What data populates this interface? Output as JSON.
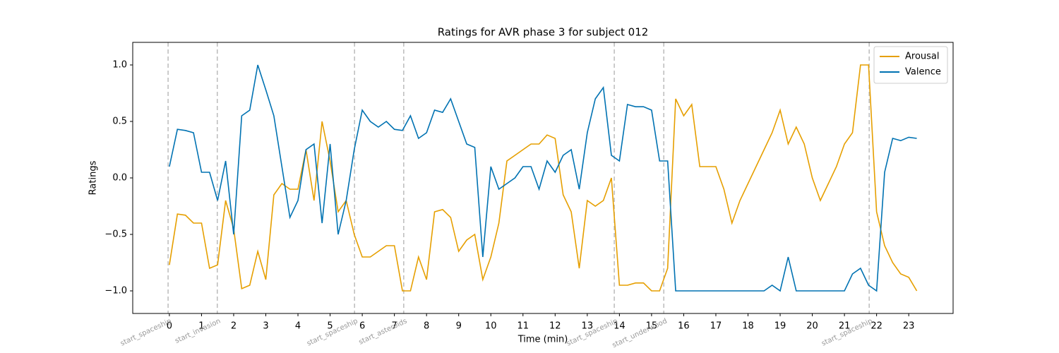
{
  "chart_data": {
    "type": "line",
    "title": "Ratings for AVR phase 3 for subject 012",
    "xlabel": "Time (min)",
    "ylabel": "Ratings",
    "x": [
      0,
      0.25,
      0.5,
      0.75,
      1,
      1.25,
      1.5,
      1.75,
      2,
      2.25,
      2.5,
      2.75,
      3,
      3.25,
      3.5,
      3.75,
      4,
      4.25,
      4.5,
      4.75,
      5,
      5.25,
      5.5,
      5.75,
      6,
      6.25,
      6.5,
      6.75,
      7,
      7.25,
      7.5,
      7.75,
      8,
      8.25,
      8.5,
      8.75,
      9,
      9.25,
      9.5,
      9.75,
      10,
      10.25,
      10.5,
      10.75,
      11,
      11.25,
      11.5,
      11.75,
      12,
      12.25,
      12.5,
      12.75,
      13,
      13.25,
      13.5,
      13.75,
      14,
      14.25,
      14.5,
      14.75,
      15,
      15.25,
      15.5,
      15.75,
      16,
      16.25,
      16.5,
      16.75,
      17,
      17.25,
      17.5,
      17.75,
      18,
      18.25,
      18.5,
      18.75,
      19,
      19.25,
      19.5,
      19.75,
      20,
      20.25,
      20.5,
      20.75,
      21,
      21.25,
      21.5,
      21.75,
      22,
      22.25,
      22.5,
      22.75,
      23,
      23.25
    ],
    "series": [
      {
        "name": "Arousal",
        "color": "#e69f00",
        "values": [
          -0.77,
          -0.32,
          -0.33,
          -0.4,
          -0.4,
          -0.8,
          -0.77,
          -0.2,
          -0.45,
          -0.98,
          -0.95,
          -0.65,
          -0.9,
          -0.15,
          -0.05,
          -0.1,
          -0.1,
          0.25,
          -0.2,
          0.5,
          0.15,
          -0.3,
          -0.2,
          -0.5,
          -0.7,
          -0.7,
          -0.65,
          -0.6,
          -0.6,
          -1,
          -1,
          -0.7,
          -0.9,
          -0.3,
          -0.28,
          -0.35,
          -0.65,
          -0.55,
          -0.5,
          -0.9,
          -0.7,
          -0.4,
          0.15,
          0.2,
          0.25,
          0.3,
          0.3,
          0.38,
          0.35,
          -0.15,
          -0.3,
          -0.8,
          -0.2,
          -0.25,
          -0.2,
          0,
          -0.95,
          -0.95,
          -0.93,
          -0.93,
          -1,
          -1,
          -0.8,
          0.7,
          0.55,
          0.65,
          0.1,
          0.1,
          0.1,
          -0.1,
          -0.4,
          -0.2,
          -0.05,
          0.1,
          0.25,
          0.4,
          0.6,
          0.3,
          0.45,
          0.3,
          0,
          -0.2,
          -0.05,
          0.1,
          0.3,
          0.4,
          1,
          1,
          -0.3,
          -0.6,
          -0.75,
          -0.85,
          -0.88,
          -1
        ]
      },
      {
        "name": "Valence",
        "color": "#0072b2",
        "values": [
          0.1,
          0.43,
          0.42,
          0.4,
          0.05,
          0.05,
          -0.2,
          0.15,
          -0.5,
          0.55,
          0.6,
          1,
          0.78,
          0.55,
          0.1,
          -0.35,
          -0.2,
          0.25,
          0.3,
          -0.4,
          0.3,
          -0.5,
          -0.2,
          0.25,
          0.6,
          0.5,
          0.45,
          0.5,
          0.43,
          0.42,
          0.55,
          0.35,
          0.4,
          0.6,
          0.58,
          0.7,
          0.5,
          0.3,
          0.27,
          -0.7,
          0.1,
          -0.1,
          -0.05,
          0,
          0.1,
          0.1,
          -0.1,
          0.15,
          0.05,
          0.2,
          0.25,
          -0.1,
          0.4,
          0.7,
          0.8,
          0.2,
          0.15,
          0.65,
          0.63,
          0.63,
          0.6,
          0.15,
          0.15,
          -1,
          -1,
          -1,
          -1,
          -1,
          -1,
          -1,
          -1,
          -1,
          -1,
          -1,
          -1,
          -0.95,
          -1,
          -0.7,
          -1,
          -1,
          -1,
          -1,
          -1,
          -1,
          -1,
          -0.85,
          -0.8,
          -0.95,
          -1,
          0.05,
          0.35,
          0.33,
          0.36,
          0.35
        ]
      }
    ],
    "events": [
      {
        "x": -0.04,
        "label": "start_spaceship"
      },
      {
        "x": 1.49,
        "label": "start_invasion"
      },
      {
        "x": 5.76,
        "label": "start_spaceship"
      },
      {
        "x": 7.29,
        "label": "start_asteroids"
      },
      {
        "x": 13.84,
        "label": "start_spaceship"
      },
      {
        "x": 15.38,
        "label": "start_underwood"
      },
      {
        "x": 21.77,
        "label": "start_spaceship"
      }
    ],
    "xlim": [
      -1.14,
      24.38
    ],
    "xticks": [
      0,
      1,
      2,
      3,
      4,
      5,
      6,
      7,
      8,
      9,
      10,
      11,
      12,
      13,
      14,
      15,
      16,
      17,
      18,
      19,
      20,
      21,
      22,
      23
    ],
    "ylim": [
      -1.2,
      1.2
    ],
    "yticks": [
      {
        "value": -1,
        "label": "−1.0"
      },
      {
        "value": -0.5,
        "label": "−0.5"
      },
      {
        "value": 0,
        "label": "0.0"
      },
      {
        "value": 0.5,
        "label": "0.5"
      },
      {
        "value": 1,
        "label": "1.0"
      }
    ],
    "legend": "upper right",
    "grid": false
  }
}
